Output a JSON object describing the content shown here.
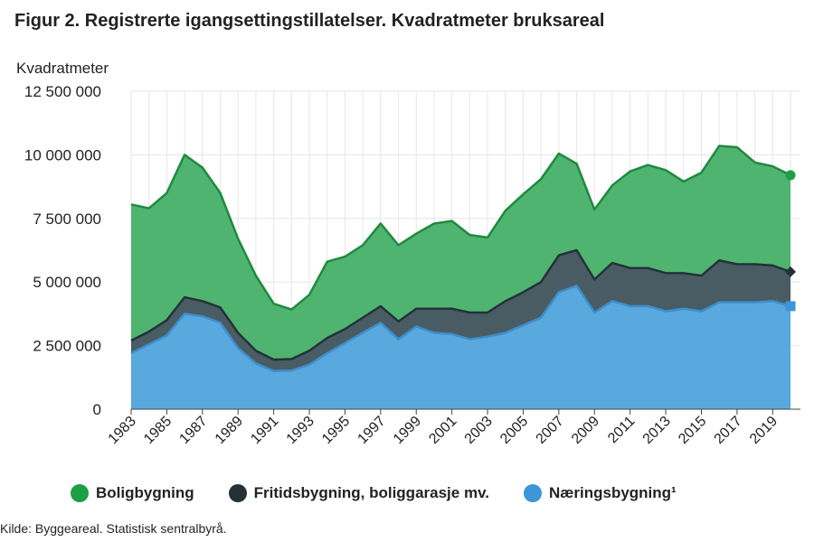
{
  "chart_data": {
    "type": "area",
    "stacked": true,
    "title": "Figur 2. Registrerte igangsettingstillatelser. Kvadratmeter bruksareal",
    "ylabel": "Kvadratmeter",
    "xlabel": "",
    "ylim": [
      0,
      12500000
    ],
    "yticks": [
      0,
      2500000,
      5000000,
      7500000,
      10000000,
      12500000
    ],
    "ytick_labels": [
      "0",
      "2 500 000",
      "5 000 000",
      "7 500 000",
      "10 000 000",
      "12 500 000"
    ],
    "xtick_labels": [
      "1983",
      "1985",
      "1987",
      "1989",
      "1991",
      "1993",
      "1995",
      "1997",
      "1999",
      "2001",
      "2003",
      "2005",
      "2007",
      "2009",
      "2011",
      "2013",
      "2015",
      "2017",
      "2019"
    ],
    "x": [
      1983,
      1984,
      1985,
      1986,
      1987,
      1988,
      1989,
      1990,
      1991,
      1992,
      1993,
      1994,
      1995,
      1996,
      1997,
      1998,
      1999,
      2000,
      2001,
      2002,
      2003,
      2004,
      2005,
      2006,
      2007,
      2008,
      2009,
      2010,
      2011,
      2012,
      2013,
      2014,
      2015,
      2016,
      2017,
      2018,
      2019,
      2020
    ],
    "series": [
      {
        "name": "Næringsbygning¹",
        "color": "#5aa9de",
        "line_color": "#3d8fcc",
        "marker": "square",
        "values": [
          2200000,
          2550000,
          2900000,
          3750000,
          3650000,
          3400000,
          2400000,
          1800000,
          1500000,
          1520000,
          1750000,
          2200000,
          2600000,
          3000000,
          3400000,
          2750000,
          3250000,
          3000000,
          2950000,
          2750000,
          2850000,
          3000000,
          3300000,
          3600000,
          4600000,
          4850000,
          3800000,
          4250000,
          4050000,
          4050000,
          3850000,
          3950000,
          3850000,
          4200000,
          4200000,
          4200000,
          4250000,
          4050000
        ]
      },
      {
        "name": "Fritidsbygning, boliggarasje mv.",
        "color": "#4a5c63",
        "line_color": "#243238",
        "marker": "diamond",
        "values": [
          500000,
          500000,
          600000,
          650000,
          600000,
          600000,
          600000,
          500000,
          450000,
          450000,
          550000,
          600000,
          550000,
          600000,
          650000,
          700000,
          700000,
          950000,
          1000000,
          1050000,
          950000,
          1250000,
          1300000,
          1400000,
          1450000,
          1400000,
          1300000,
          1500000,
          1500000,
          1500000,
          1500000,
          1400000,
          1400000,
          1650000,
          1500000,
          1500000,
          1400000,
          1350000
        ]
      },
      {
        "name": "Boligbygning",
        "color": "#4fb470",
        "line_color": "#1e8a3e",
        "marker": "circle",
        "values": [
          5350000,
          4850000,
          5000000,
          5600000,
          5250000,
          4500000,
          3700000,
          2950000,
          2200000,
          1950000,
          2200000,
          3000000,
          2850000,
          2850000,
          3250000,
          3000000,
          2950000,
          3350000,
          3450000,
          3050000,
          2950000,
          3550000,
          3850000,
          4050000,
          4000000,
          3400000,
          2750000,
          3050000,
          3800000,
          4050000,
          4050000,
          3600000,
          4050000,
          4500000,
          4600000,
          4000000,
          3900000,
          3800000
        ]
      }
    ],
    "source": "Kilde: Byggeareal. Statistisk sentralbyrå."
  },
  "legend": [
    {
      "label": "Boligbygning",
      "color": "#1e9e46"
    },
    {
      "label": "Fritidsbygning, boliggarasje mv.",
      "color": "#243238"
    },
    {
      "label": "Næringsbygning¹",
      "color": "#3d96d6"
    }
  ]
}
